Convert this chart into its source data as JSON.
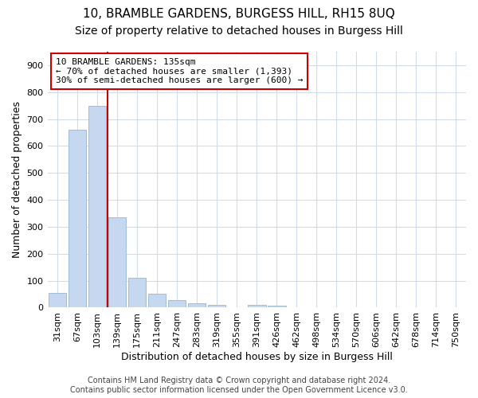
{
  "title": "10, BRAMBLE GARDENS, BURGESS HILL, RH15 8UQ",
  "subtitle": "Size of property relative to detached houses in Burgess Hill",
  "xlabel": "Distribution of detached houses by size in Burgess Hill",
  "ylabel": "Number of detached properties",
  "categories": [
    "31sqm",
    "67sqm",
    "103sqm",
    "139sqm",
    "175sqm",
    "211sqm",
    "247sqm",
    "283sqm",
    "319sqm",
    "355sqm",
    "391sqm",
    "426sqm",
    "462sqm",
    "498sqm",
    "534sqm",
    "570sqm",
    "606sqm",
    "642sqm",
    "678sqm",
    "714sqm",
    "750sqm"
  ],
  "values": [
    55,
    660,
    750,
    335,
    110,
    52,
    27,
    15,
    10,
    0,
    10,
    7,
    0,
    0,
    0,
    0,
    0,
    0,
    0,
    0,
    0
  ],
  "bar_color": "#c5d8f0",
  "bar_edgecolor": "#a0bcd8",
  "vline_color": "#cc0000",
  "vline_position": 3,
  "annotation_text": "10 BRAMBLE GARDENS: 135sqm\n← 70% of detached houses are smaller (1,393)\n30% of semi-detached houses are larger (600) →",
  "ylim": [
    0,
    950
  ],
  "yticks": [
    0,
    100,
    200,
    300,
    400,
    500,
    600,
    700,
    800,
    900
  ],
  "bg_color": "#ffffff",
  "plot_bg_color": "#ffffff",
  "grid_color": "#d0dcea",
  "footer_text": "Contains HM Land Registry data © Crown copyright and database right 2024.\nContains public sector information licensed under the Open Government Licence v3.0.",
  "title_fontsize": 11,
  "subtitle_fontsize": 10,
  "xlabel_fontsize": 9,
  "ylabel_fontsize": 9,
  "tick_fontsize": 8,
  "annotation_fontsize": 8,
  "footer_fontsize": 7
}
